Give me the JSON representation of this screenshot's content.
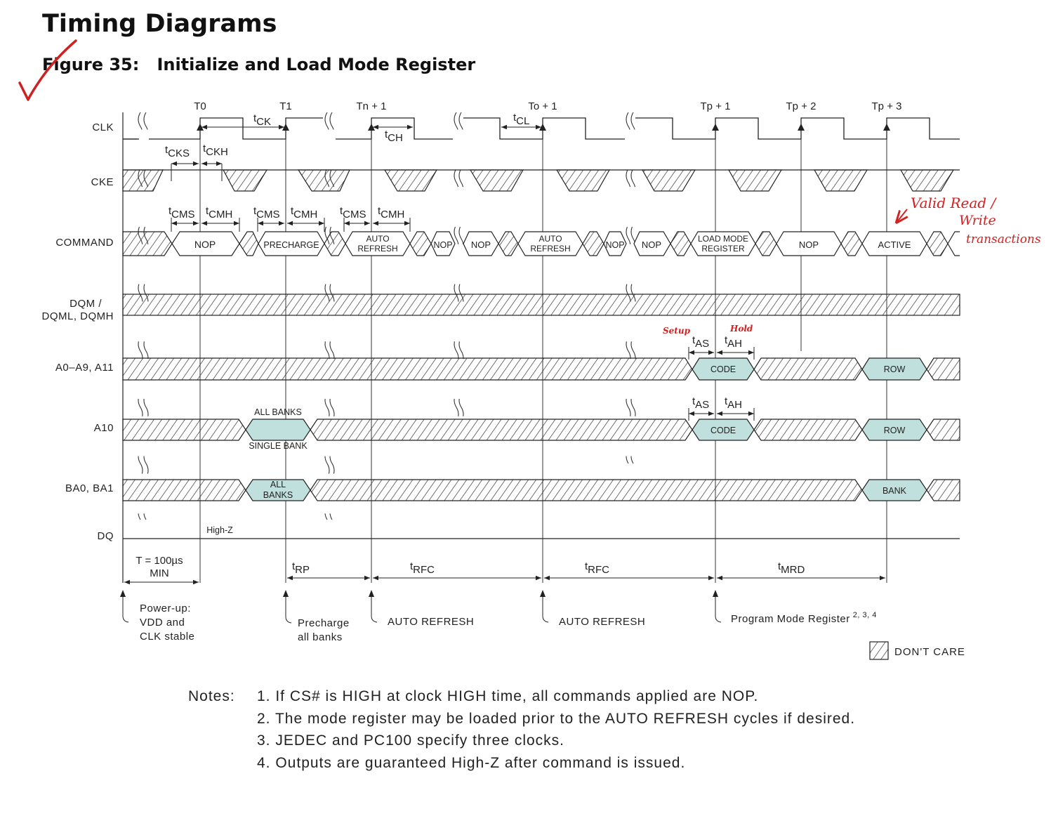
{
  "page": {
    "heading": "Timing Diagrams",
    "figure_label": "Figure 35:",
    "figure_title": "Initialize and Load Mode Register"
  },
  "signals": [
    "CLK",
    "CKE",
    "COMMAND",
    "DQM /",
    "DQML, DQMH",
    "A0–A9, A11",
    "A10",
    "BA0, BA1",
    "DQ"
  ],
  "clock_labels": [
    "T0",
    "T1",
    "Tn + 1",
    "To + 1",
    "Tp + 1",
    "Tp + 2",
    "Tp + 3"
  ],
  "params": {
    "t": "t",
    "ck": "CK",
    "ch": "CH",
    "cl": "CL",
    "cks": "CKS",
    "ckh": "CKH",
    "cms": "CMS",
    "cmh": "CMH",
    "as": "AS",
    "ah": "AH",
    "rp": "RP",
    "rfc": "RFC",
    "mrd": "MRD"
  },
  "commands": [
    "NOP",
    "PRECHARGE",
    "AUTO",
    "REFRESH",
    "NOP",
    "NOP",
    "AUTO",
    "REFRESH",
    "NOP",
    "NOP",
    "LOAD MODE",
    "REGISTER",
    "NOP",
    "ACTIVE"
  ],
  "address": {
    "code1": "CODE",
    "row1": "ROW",
    "all_banks": "ALL BANKS",
    "single_bank": "SINGLE BANK",
    "code2": "CODE",
    "row2": "ROW",
    "all": "ALL",
    "banks": "BANKS",
    "bank": "BANK",
    "high_z": "High-Z"
  },
  "intervals": {
    "t100_line1": "T = 100µs",
    "t100_line2": "MIN"
  },
  "events": {
    "powerup": [
      "Power-up:",
      "VDD and",
      "CLK stable"
    ],
    "precharge": [
      "Precharge",
      "all banks"
    ],
    "auto_refresh_1": "AUTO REFRESH",
    "auto_refresh_2": "AUTO REFRESH",
    "program": "Program Mode Register",
    "program_sup": "2, 3, 4"
  },
  "legend": {
    "dont_care": "DON'T CARE"
  },
  "annotations": {
    "valid": [
      "Valid Read /",
      "Write",
      "transactions"
    ],
    "setup": "Setup",
    "hold": "Hold"
  },
  "notes": {
    "label": "Notes:",
    "items": [
      "1.  If CS# is HIGH at clock HIGH time, all commands applied are NOP.",
      "2.  The mode register may be loaded prior to the AUTO REFRESH cycles if desired.",
      "3.  JEDEC and PC100 specify three clocks.",
      "4.  Outputs are guaranteed High-Z after command is issued."
    ]
  },
  "colors": {
    "ink": "#222222",
    "valid_fill": "#bfe0dc",
    "annotation_red": "#d42020"
  }
}
